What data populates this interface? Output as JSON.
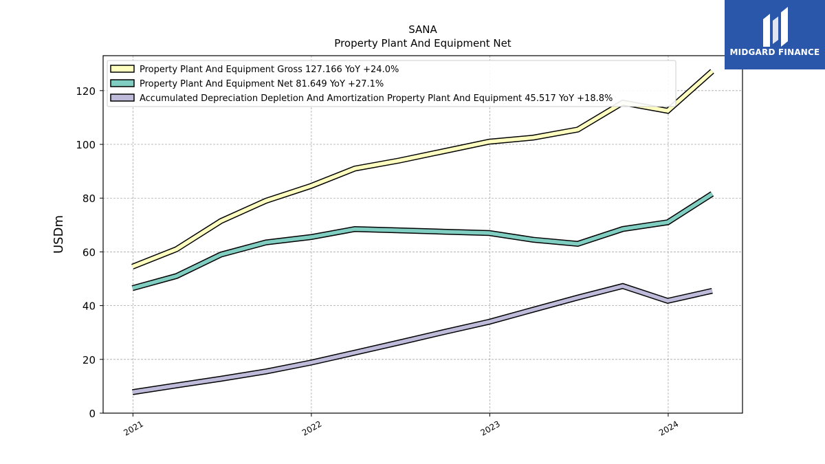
{
  "brand": {
    "name": "MIDGARD FINANCE",
    "bg_color": "#2a57a9"
  },
  "chart_data": {
    "type": "line",
    "title": "SANA",
    "subtitle": "Property Plant And Equipment Net",
    "ylabel": "USDm",
    "xlabel": "",
    "ylim": [
      0,
      133
    ],
    "yticks": [
      0,
      20,
      40,
      60,
      80,
      100,
      120
    ],
    "xlim": [
      "2020-11-01",
      "2024-06-01"
    ],
    "xticks": [
      {
        "date": "2021-01-01",
        "label": "2021"
      },
      {
        "date": "2022-01-01",
        "label": "2022"
      },
      {
        "date": "2023-01-01",
        "label": "2023"
      },
      {
        "date": "2024-01-01",
        "label": "2024"
      }
    ],
    "grid": true,
    "legend_position": "top-left",
    "series": [
      {
        "name": "Property Plant And Equipment Gross  127.166 YoY +24.0%",
        "color": "#ffffbf",
        "points": [
          [
            "2020-12-31",
            54.5
          ],
          [
            "2021-03-31",
            61.0
          ],
          [
            "2021-06-30",
            71.5
          ],
          [
            "2021-09-30",
            79.0
          ],
          [
            "2021-12-31",
            84.5
          ],
          [
            "2022-03-31",
            91.0
          ],
          [
            "2022-06-30",
            94.0
          ],
          [
            "2022-09-30",
            97.5
          ],
          [
            "2022-12-31",
            101.0
          ],
          [
            "2023-03-31",
            102.5
          ],
          [
            "2023-06-30",
            105.5
          ],
          [
            "2023-09-30",
            115.5
          ],
          [
            "2023-12-31",
            112.5
          ],
          [
            "2024-03-31",
            127.2
          ]
        ]
      },
      {
        "name": "Property Plant And Equipment Net  81.649 YoY +27.1%",
        "color": "#80cdc1",
        "points": [
          [
            "2020-12-31",
            46.5
          ],
          [
            "2021-03-31",
            51.0
          ],
          [
            "2021-06-30",
            59.0
          ],
          [
            "2021-09-30",
            63.5
          ],
          [
            "2021-12-31",
            65.5
          ],
          [
            "2022-03-31",
            68.5
          ],
          [
            "2022-06-30",
            68.0
          ],
          [
            "2022-09-30",
            67.5
          ],
          [
            "2022-12-31",
            67.0
          ],
          [
            "2023-03-31",
            64.5
          ],
          [
            "2023-06-30",
            63.0
          ],
          [
            "2023-09-30",
            68.5
          ],
          [
            "2023-12-31",
            71.0
          ],
          [
            "2024-03-31",
            81.6
          ]
        ]
      },
      {
        "name": "Accumulated Depreciation Depletion And Amortization Property Plant And Equipment  45.517 YoY +18.8%",
        "color": "#bebada",
        "points": [
          [
            "2020-12-31",
            7.8
          ],
          [
            "2021-03-31",
            10.3
          ],
          [
            "2021-06-30",
            12.8
          ],
          [
            "2021-09-30",
            15.5
          ],
          [
            "2021-12-31",
            18.8
          ],
          [
            "2022-03-31",
            22.5
          ],
          [
            "2022-06-30",
            26.3
          ],
          [
            "2022-09-30",
            30.2
          ],
          [
            "2022-12-31",
            34.0
          ],
          [
            "2023-03-31",
            38.5
          ],
          [
            "2023-06-30",
            43.0
          ],
          [
            "2023-09-30",
            47.3
          ],
          [
            "2023-12-31",
            41.8
          ],
          [
            "2024-03-31",
            45.5
          ]
        ]
      }
    ]
  }
}
